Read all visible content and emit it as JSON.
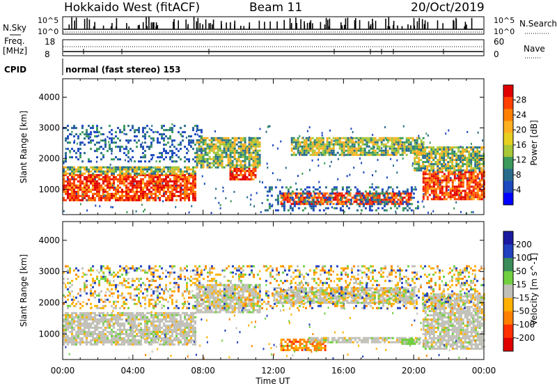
{
  "header": {
    "title": "Hokkaido West (fitACF)",
    "beam": "Beam 11",
    "date": "20/Oct/2019"
  },
  "status_panel": {
    "nsky_label": "N.Sky",
    "nsearch_label": "N.Search",
    "noise_ticks": [
      "10^5",
      "10^0"
    ],
    "freq_label_1": "Freq.",
    "freq_label_2": "[MHz]",
    "freq_ticks": [
      "18",
      "8"
    ],
    "nave_label": "Nave",
    "nave_ticks": [
      "60",
      "0"
    ],
    "cpid_label": "CPID",
    "cpid_value": "normal (fast stereo) 153"
  },
  "chart_data": [
    {
      "type": "heatmap",
      "xlabel": "Time UT",
      "ylabel": "Slant Range [km]",
      "x_ticks": [
        "00:00",
        "04:00",
        "08:00",
        "12:00",
        "16:00",
        "20:00",
        "00:00"
      ],
      "xlim_hours": [
        0,
        24
      ],
      "y_ticks": [
        1000,
        2000,
        3000,
        4000
      ],
      "ylim_km": [
        180,
        4600
      ],
      "colorbar": {
        "label": "Power [dB]",
        "ticks": [
          "28",
          "24",
          "20",
          "16",
          "12",
          "8",
          "4"
        ],
        "colors": [
          "#e00000",
          "#ff4000",
          "#ff8000",
          "#ffb020",
          "#e8d020",
          "#a8c838",
          "#3c9a5c",
          "#286c8c",
          "#1c48c0",
          "#0000ff"
        ]
      },
      "regions": [
        {
          "t0": 0.0,
          "t1": 7.6,
          "r0": 650,
          "r1": 1500,
          "level": "high"
        },
        {
          "t0": 0.0,
          "t1": 7.6,
          "r0": 1500,
          "r1": 1750,
          "level": "mid"
        },
        {
          "t0": 0.0,
          "t1": 8.0,
          "r0": 1900,
          "r1": 3100,
          "level": "low"
        },
        {
          "t0": 7.6,
          "t1": 11.2,
          "r0": 1700,
          "r1": 2700,
          "level": "mid"
        },
        {
          "t0": 9.5,
          "t1": 11.0,
          "r0": 1300,
          "r1": 1700,
          "level": "high"
        },
        {
          "t0": 12.4,
          "t1": 19.8,
          "r0": 500,
          "r1": 900,
          "level": "high"
        },
        {
          "t0": 11.5,
          "t1": 20.2,
          "r0": 300,
          "r1": 1100,
          "level": "low"
        },
        {
          "t0": 13.0,
          "t1": 20.5,
          "r0": 2100,
          "r1": 2700,
          "level": "mid"
        },
        {
          "t0": 20.5,
          "t1": 24.0,
          "r0": 700,
          "r1": 1600,
          "level": "high"
        },
        {
          "t0": 20.0,
          "t1": 24.0,
          "r0": 1600,
          "r1": 2400,
          "level": "mid"
        }
      ]
    },
    {
      "type": "heatmap",
      "xlabel": "Time UT",
      "ylabel": "Slant Range [km]",
      "x_ticks": [
        "00:00",
        "04:00",
        "08:00",
        "12:00",
        "16:00",
        "20:00",
        "00:00"
      ],
      "xlim_hours": [
        0,
        24
      ],
      "y_ticks": [
        1000,
        2000,
        3000,
        4000
      ],
      "ylim_km": [
        180,
        4600
      ],
      "colorbar": {
        "label": "Velocity [m s^-1]",
        "ticks": [
          "200",
          "100",
          "50",
          "15",
          "-15",
          "-50",
          "-100",
          "-200"
        ],
        "colors": [
          "#1a1aa0",
          "#2040c0",
          "#3a8c58",
          "#70d040",
          "#c0c0b8",
          "#ffb000",
          "#ff8000",
          "#ff3000",
          "#e00000"
        ]
      },
      "regions": [
        {
          "t0": 0.0,
          "t1": 7.6,
          "r0": 650,
          "r1": 1700,
          "level": "gray"
        },
        {
          "t0": 7.6,
          "t1": 11.2,
          "r0": 1700,
          "r1": 2600,
          "level": "gray"
        },
        {
          "t0": 12.0,
          "t1": 20.0,
          "r0": 2000,
          "r1": 2500,
          "level": "gray"
        },
        {
          "t0": 12.4,
          "t1": 15.0,
          "r0": 500,
          "r1": 850,
          "level": "orange"
        },
        {
          "t0": 14.0,
          "t1": 20.4,
          "r0": 750,
          "r1": 900,
          "level": "gray"
        },
        {
          "t0": 19.3,
          "t1": 20.4,
          "r0": 700,
          "r1": 850,
          "level": "green"
        },
        {
          "t0": 20.5,
          "t1": 24.0,
          "r0": 500,
          "r1": 2300,
          "level": "gray"
        },
        {
          "t0": 0.0,
          "t1": 24.0,
          "r0": 1800,
          "r1": 3200,
          "level": "mixed"
        }
      ]
    }
  ]
}
